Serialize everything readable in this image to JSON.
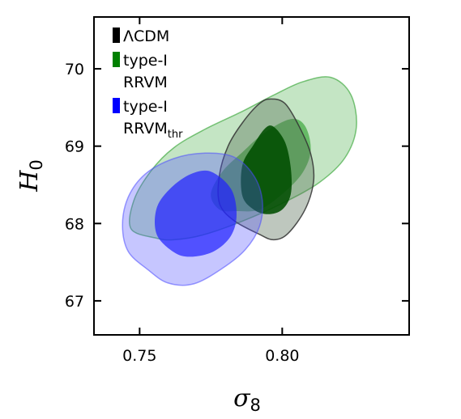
{
  "chart_data": {
    "type": "contour",
    "xlabel": {
      "symbol": "σ",
      "subscript": "8"
    },
    "ylabel": {
      "symbol": "H",
      "subscript": "0"
    },
    "xlim": [
      0.734,
      0.8445
    ],
    "ylim": [
      66.56,
      70.67
    ],
    "xticks": [
      0.75,
      0.8
    ],
    "xtick_labels": [
      "0.75",
      "0.80"
    ],
    "yticks": [
      67,
      68,
      69,
      70
    ],
    "ytick_labels": [
      "67",
      "68",
      "69",
      "70"
    ],
    "legend_position": "top-left",
    "series": [
      {
        "id": "rrvm",
        "legend_lines": [
          "type-I",
          "RRVM"
        ],
        "legend_sub": "",
        "color": "#008000",
        "contours": [
          {
            "level": "95%",
            "fill": "#2ca02c",
            "opacity": 0.28,
            "stroke": "#2ca02c",
            "stroke_opacity": 0.6,
            "points": [
              [
                0.756,
                67.81
              ],
              [
                0.747,
                67.93
              ],
              [
                0.748,
                68.3
              ],
              [
                0.754,
                68.68
              ],
              [
                0.762,
                68.98
              ],
              [
                0.773,
                69.22
              ],
              [
                0.786,
                69.45
              ],
              [
                0.797,
                69.66
              ],
              [
                0.807,
                69.83
              ],
              [
                0.817,
                69.89
              ],
              [
                0.824,
                69.67
              ],
              [
                0.826,
                69.25
              ],
              [
                0.822,
                68.85
              ],
              [
                0.813,
                68.53
              ],
              [
                0.8,
                68.26
              ],
              [
                0.786,
                68.03
              ],
              [
                0.772,
                67.85
              ],
              [
                0.762,
                67.79
              ]
            ]
          },
          {
            "level": "68%",
            "fill": "#2ca02c",
            "opacity": 0.62,
            "stroke": "none",
            "stroke_opacity": 0,
            "points": [
              [
                0.784,
                68.16
              ],
              [
                0.778,
                68.18
              ],
              [
                0.775,
                68.38
              ],
              [
                0.779,
                68.67
              ],
              [
                0.786,
                68.92
              ],
              [
                0.794,
                69.18
              ],
              [
                0.803,
                69.35
              ],
              [
                0.808,
                69.26
              ],
              [
                0.81,
                68.95
              ],
              [
                0.807,
                68.65
              ],
              [
                0.8,
                68.38
              ],
              [
                0.792,
                68.18
              ]
            ]
          }
        ]
      },
      {
        "id": "lcdm",
        "legend_lines": [
          "ΛCDM"
        ],
        "legend_sub": "",
        "color": "#000000",
        "contours": [
          {
            "level": "95%",
            "fill": "#556b55",
            "opacity": 0.38,
            "stroke": "#333333",
            "stroke_opacity": 0.85,
            "points": [
              [
                0.783,
                68.04
              ],
              [
                0.778,
                68.26
              ],
              [
                0.778,
                68.63
              ],
              [
                0.781,
                69.0
              ],
              [
                0.786,
                69.3
              ],
              [
                0.792,
                69.55
              ],
              [
                0.796,
                69.61
              ],
              [
                0.801,
                69.55
              ],
              [
                0.806,
                69.25
              ],
              [
                0.81,
                68.9
              ],
              [
                0.811,
                68.55
              ],
              [
                0.808,
                68.18
              ],
              [
                0.802,
                67.87
              ],
              [
                0.797,
                67.79
              ],
              [
                0.792,
                67.86
              ]
            ]
          },
          {
            "level": "68%",
            "fill": "#004d00",
            "opacity": 0.88,
            "stroke": "none",
            "stroke_opacity": 0,
            "points": [
              [
                0.79,
                68.18
              ],
              [
                0.786,
                68.36
              ],
              [
                0.786,
                68.75
              ],
              [
                0.79,
                69.02
              ],
              [
                0.794,
                69.23
              ],
              [
                0.797,
                69.25
              ],
              [
                0.801,
                69.05
              ],
              [
                0.803,
                68.72
              ],
              [
                0.803,
                68.38
              ],
              [
                0.8,
                68.18
              ],
              [
                0.795,
                68.12
              ]
            ]
          }
        ]
      },
      {
        "id": "rrvm_thr",
        "legend_lines": [
          "type-I",
          "RRVM"
        ],
        "legend_sub": "thr",
        "color": "#0000ff",
        "contours": [
          {
            "level": "95%",
            "fill": "#4d4dff",
            "opacity": 0.32,
            "stroke": "#4d4dff",
            "stroke_opacity": 0.55,
            "points": [
              [
                0.753,
                67.4
              ],
              [
                0.746,
                67.64
              ],
              [
                0.744,
                67.98
              ],
              [
                0.746,
                68.34
              ],
              [
                0.752,
                68.64
              ],
              [
                0.762,
                68.84
              ],
              [
                0.773,
                68.91
              ],
              [
                0.783,
                68.86
              ],
              [
                0.79,
                68.62
              ],
              [
                0.793,
                68.3
              ],
              [
                0.792,
                67.96
              ],
              [
                0.787,
                67.66
              ],
              [
                0.779,
                67.42
              ],
              [
                0.769,
                67.22
              ],
              [
                0.76,
                67.23
              ]
            ]
          },
          {
            "level": "68%",
            "fill": "#2020ff",
            "opacity": 0.7,
            "stroke": "none",
            "stroke_opacity": 0,
            "points": [
              [
                0.762,
                67.63
              ],
              [
                0.756,
                67.86
              ],
              [
                0.756,
                68.2
              ],
              [
                0.761,
                68.46
              ],
              [
                0.768,
                68.64
              ],
              [
                0.775,
                68.67
              ],
              [
                0.782,
                68.45
              ],
              [
                0.784,
                68.12
              ],
              [
                0.782,
                67.84
              ],
              [
                0.776,
                67.64
              ],
              [
                0.768,
                67.57
              ]
            ]
          }
        ]
      }
    ],
    "legend_order": [
      "lcdm",
      "rrvm",
      "rrvm_thr"
    ]
  }
}
